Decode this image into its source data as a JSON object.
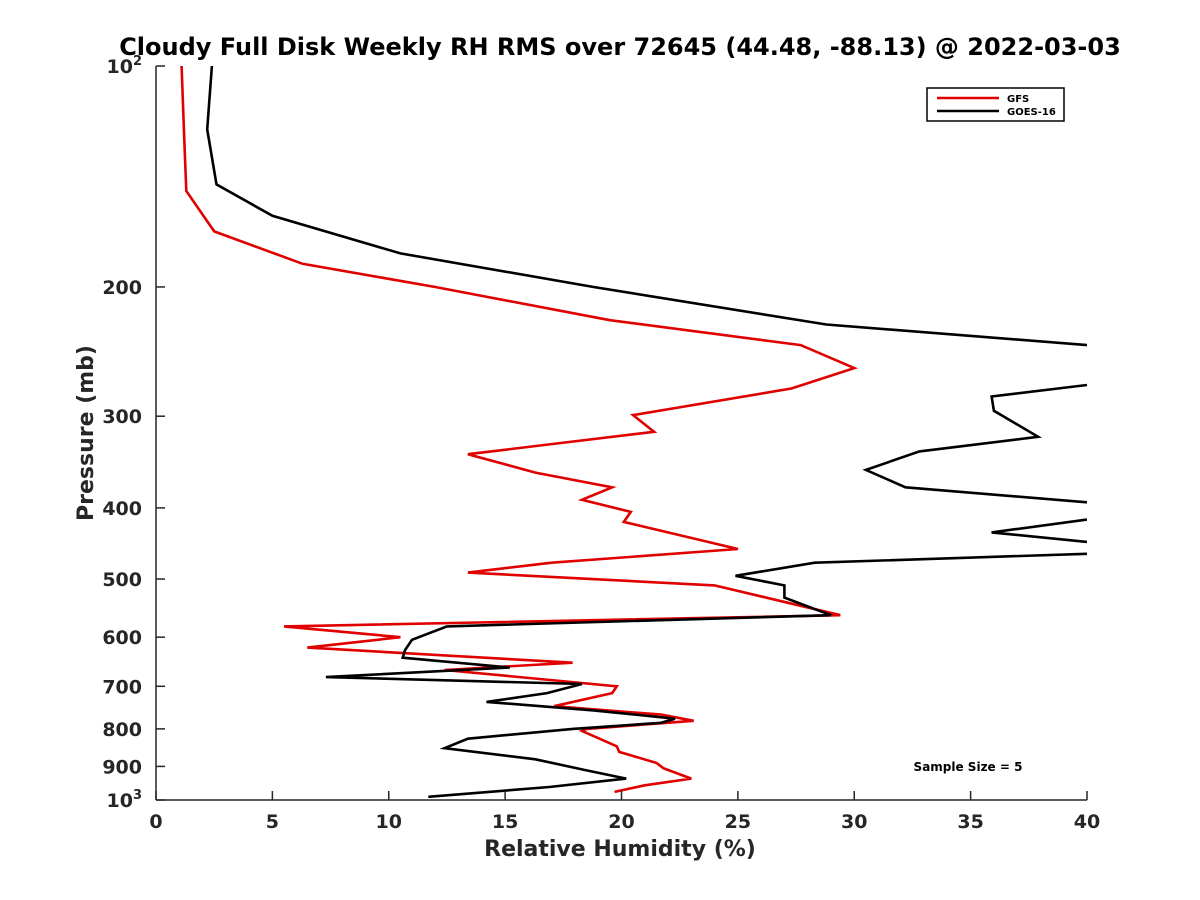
{
  "chart_data": {
    "type": "line",
    "title": "Cloudy Full Disk Weekly RH RMS over 72645 (44.48, -88.13) @ 2022-03-03",
    "xlabel": "Relative Humidity (%)",
    "ylabel": "Pressure (mb)",
    "xlim": [
      0,
      40
    ],
    "ylim": [
      100,
      1000
    ],
    "yscale": "log",
    "y_reversed": true,
    "grid": false,
    "legend_position": "top-right",
    "x_ticks": [
      {
        "value": 0,
        "label": "0"
      },
      {
        "value": 5,
        "label": "5"
      },
      {
        "value": 10,
        "label": "10"
      },
      {
        "value": 15,
        "label": "15"
      },
      {
        "value": 20,
        "label": "20"
      },
      {
        "value": 25,
        "label": "25"
      },
      {
        "value": 30,
        "label": "30"
      },
      {
        "value": 35,
        "label": "35"
      },
      {
        "value": 40,
        "label": "40"
      }
    ],
    "y_ticks": [
      {
        "value": 100,
        "label": "10",
        "sup": "2"
      },
      {
        "value": 200,
        "label": "200"
      },
      {
        "value": 300,
        "label": "300"
      },
      {
        "value": 400,
        "label": "400"
      },
      {
        "value": 500,
        "label": "500"
      },
      {
        "value": 600,
        "label": "600"
      },
      {
        "value": 700,
        "label": "700"
      },
      {
        "value": 800,
        "label": "800"
      },
      {
        "value": 900,
        "label": "900"
      },
      {
        "value": 1000,
        "label": "10",
        "sup": "3"
      }
    ],
    "series": [
      {
        "name": "GFS",
        "color": "#e00000",
        "x": [
          1.1,
          1.2,
          1.3,
          2.5,
          6.3,
          12.0,
          19.5,
          27.7,
          30.0,
          27.3,
          20.5,
          21.4,
          13.4,
          16.3,
          19.6,
          18.3,
          20.4,
          20.1,
          25.0,
          17.0,
          13.4,
          24.0,
          29.4,
          5.5,
          10.5,
          6.5,
          17.9,
          12.4,
          19.8,
          19.6,
          17.1,
          21.7,
          23.1,
          18.5,
          18.3,
          19.8,
          19.9,
          21.5,
          21.8,
          23.0,
          21.0,
          19.7
        ],
        "y": [
          100,
          122,
          148,
          168,
          186,
          200,
          222,
          240,
          258,
          275,
          299,
          315,
          338,
          358,
          375,
          390,
          405,
          418,
          455,
          475,
          490,
          510,
          560,
          580,
          600,
          620,
          650,
          665,
          700,
          715,
          745,
          765,
          780,
          800,
          805,
          845,
          860,
          890,
          905,
          935,
          955,
          975
        ]
      },
      {
        "name": "GOES-16",
        "color": "#000000",
        "x": [
          2.4,
          2.2,
          2.6,
          5.0,
          10.5,
          18.8,
          28.8,
          40.0,
          null,
          40.0,
          35.9,
          36.0,
          37.9,
          32.8,
          30.5,
          32.2,
          40.0,
          null,
          40.0,
          35.9,
          40.0,
          null,
          40.0,
          28.3,
          24.9,
          27.0,
          27.0,
          29.0,
          12.5,
          11.0,
          10.7,
          10.6,
          15.2,
          7.3,
          18.3,
          16.8,
          14.2,
          18.8,
          22.3,
          21.7,
          17.9,
          13.4,
          12.4,
          16.3,
          18.4,
          20.2,
          16.9,
          11.7
        ],
        "y": [
          100,
          122,
          145,
          160,
          180,
          200,
          225,
          240,
          null,
          272,
          282,
          295,
          320,
          335,
          355,
          375,
          393,
          null,
          415,
          432,
          445,
          null,
          462,
          475,
          495,
          510,
          530,
          560,
          580,
          605,
          625,
          640,
          660,
          680,
          695,
          715,
          735,
          755,
          775,
          785,
          800,
          825,
          850,
          880,
          910,
          935,
          960,
          990
        ]
      }
    ],
    "annotations": [
      "Sample Size = 5"
    ]
  }
}
